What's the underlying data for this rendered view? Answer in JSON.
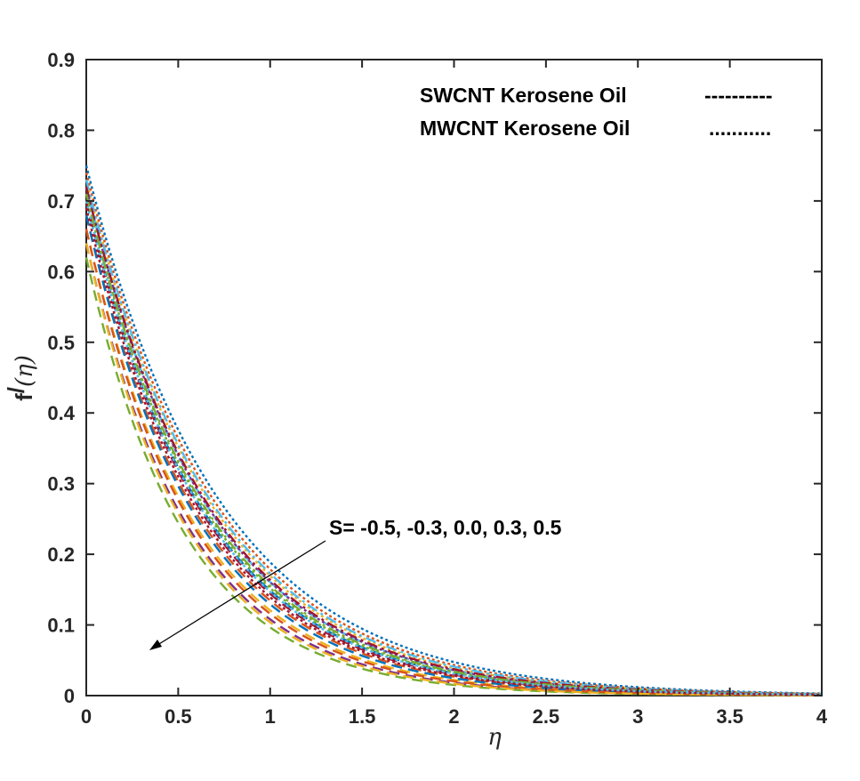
{
  "chart_data": {
    "type": "line",
    "title": "",
    "xlabel": "η",
    "ylabel": {
      "main": "f",
      "prime": "/",
      "rest": "(η)"
    },
    "xlim": [
      0,
      4
    ],
    "ylim": [
      0,
      0.9
    ],
    "xticks": [
      "0",
      "0.5",
      "1",
      "1.5",
      "2",
      "2.5",
      "3",
      "3.5",
      "4"
    ],
    "yticks": [
      "0",
      "0.1",
      "0.2",
      "0.3",
      "0.4",
      "0.5",
      "0.6",
      "0.7",
      "0.8",
      "0.9"
    ],
    "legend": {
      "position": "top-right",
      "entries": [
        {
          "label": "SWCNT Kerosene Oil",
          "style": "----------"
        },
        {
          "label": "MWCNT Kerosene Oil",
          "style": "..........."
        }
      ]
    },
    "annotation": {
      "text": "S= -0.5, -0.3, 0.0, 0.3, 0.5",
      "arrow": "points toward decreasing S effect"
    },
    "series": [
      {
        "name": "SWCNT S=-0.5",
        "dash": "dashed",
        "color": "#0072BD",
        "f0": 0.7,
        "decay": 1.55
      },
      {
        "name": "SWCNT S=-0.3",
        "dash": "dashed",
        "color": "#D95319",
        "f0": 0.68,
        "decay": 1.62
      },
      {
        "name": "SWCNT S=0.0",
        "dash": "dashed",
        "color": "#EDB120",
        "f0": 0.66,
        "decay": 1.7
      },
      {
        "name": "SWCNT S=0.3",
        "dash": "dashed",
        "color": "#7E2F8E",
        "f0": 0.64,
        "decay": 1.78
      },
      {
        "name": "SWCNT S=0.5",
        "dash": "dashed",
        "color": "#77AC30",
        "f0": 0.62,
        "decay": 1.86
      },
      {
        "name": "SWCNT S=-0.5 b",
        "dash": "dashed",
        "color": "#4DBEEE",
        "f0": 0.72,
        "decay": 1.5
      },
      {
        "name": "SWCNT S=-0.3 b",
        "dash": "dashed",
        "color": "#A2142F",
        "f0": 0.7,
        "decay": 1.58
      },
      {
        "name": "SWCNT S=0.0 b",
        "dash": "dashed",
        "color": "#0072BD",
        "f0": 0.68,
        "decay": 1.66
      },
      {
        "name": "SWCNT S=0.3 b",
        "dash": "dashed",
        "color": "#D95319",
        "f0": 0.66,
        "decay": 1.74
      },
      {
        "name": "SWCNT S=0.5 b",
        "dash": "dashed",
        "color": "#EDB120",
        "f0": 0.64,
        "decay": 1.82
      },
      {
        "name": "MWCNT S=-0.5",
        "dash": "dotted",
        "color": "#0072BD",
        "f0": 0.75,
        "decay": 1.38
      },
      {
        "name": "MWCNT S=-0.3",
        "dash": "dotted",
        "color": "#D95319",
        "f0": 0.74,
        "decay": 1.42
      },
      {
        "name": "MWCNT S=0.0",
        "dash": "dotted",
        "color": "#EDB120",
        "f0": 0.73,
        "decay": 1.46
      },
      {
        "name": "MWCNT S=0.3",
        "dash": "dotted",
        "color": "#7E2F8E",
        "f0": 0.72,
        "decay": 1.5
      },
      {
        "name": "MWCNT S=0.5",
        "dash": "dotted",
        "color": "#77AC30",
        "f0": 0.71,
        "decay": 1.54
      },
      {
        "name": "MWCNT S=-0.5 b",
        "dash": "dashdot",
        "color": "#4DBEEE",
        "f0": 0.73,
        "decay": 1.44
      },
      {
        "name": "MWCNT S=-0.3 b",
        "dash": "dashdot",
        "color": "#A2142F",
        "f0": 0.72,
        "decay": 1.48
      },
      {
        "name": "MWCNT S=0.0 b",
        "dash": "dashdot",
        "color": "#77AC30",
        "f0": 0.71,
        "decay": 1.52
      },
      {
        "name": "MWCNT S=0.3 b",
        "dash": "dotted",
        "color": "#4DBEEE",
        "f0": 0.7,
        "decay": 1.56
      },
      {
        "name": "MWCNT S=0.5 b",
        "dash": "dotted",
        "color": "#A2142F",
        "f0": 0.69,
        "decay": 1.6
      }
    ]
  }
}
